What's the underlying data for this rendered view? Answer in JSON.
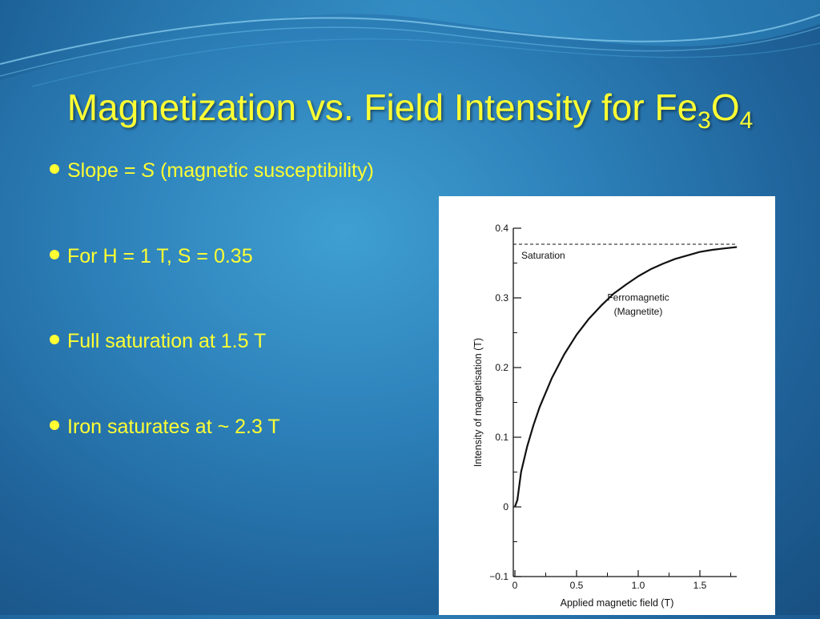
{
  "slide": {
    "title": "Magnetization vs. Field Intensity for Fe",
    "title_sub1": "3",
    "title_mid": "O",
    "title_sub2": "4"
  },
  "bullets": [
    {
      "pre": "Slope = ",
      "em": "S",
      "post": " (magnetic susceptibility)"
    },
    {
      "pre": "For  H = 1 T, S = 0.35",
      "em": "",
      "post": ""
    },
    {
      "pre": "Full saturation at 1.5 T",
      "em": "",
      "post": ""
    },
    {
      "pre": "Iron saturates at ~ 2.3 T",
      "em": "",
      "post": ""
    }
  ],
  "colors": {
    "title_text": "#ffff33",
    "background": "#2c7fb8",
    "chart_background": "#ffffff",
    "chart_ink": "#111111"
  },
  "chart_data": {
    "type": "line",
    "title": "",
    "xlabel": "Applied magnetic field (T)",
    "ylabel": "Intensity of magnetisation (T)",
    "xlim": [
      0,
      1.85
    ],
    "ylim": [
      -0.1,
      0.4
    ],
    "xticks": [
      0,
      0.5,
      1.0,
      1.5
    ],
    "xtick_labels": [
      "0",
      "0.5",
      "1.0",
      "1.5"
    ],
    "yticks": [
      -0.1,
      0,
      0.1,
      0.2,
      0.3,
      0.4
    ],
    "ytick_labels": [
      "−0.1",
      "0",
      "0.1",
      "0.2",
      "0.3",
      "0.4"
    ],
    "grid": false,
    "series": [
      {
        "x": [
          0,
          0.02,
          0.05,
          0.1,
          0.15,
          0.2,
          0.3,
          0.4,
          0.5,
          0.6,
          0.7,
          0.8,
          0.9,
          1.0,
          1.1,
          1.2,
          1.3,
          1.4,
          1.5,
          1.6,
          1.7,
          1.8
        ],
        "y": [
          0,
          0.01,
          0.05,
          0.087,
          0.117,
          0.143,
          0.185,
          0.219,
          0.247,
          0.27,
          0.289,
          0.306,
          0.319,
          0.331,
          0.341,
          0.349,
          0.356,
          0.361,
          0.366,
          0.369,
          0.371,
          0.373
        ]
      }
    ],
    "saturation_line": {
      "y": 0.377,
      "label": "Saturation"
    },
    "annotations": [
      {
        "text": "Ferromagnetic",
        "x": 1.0,
        "y": 0.296
      },
      {
        "text": "(Magnetite)",
        "x": 1.0,
        "y": 0.276
      }
    ]
  }
}
